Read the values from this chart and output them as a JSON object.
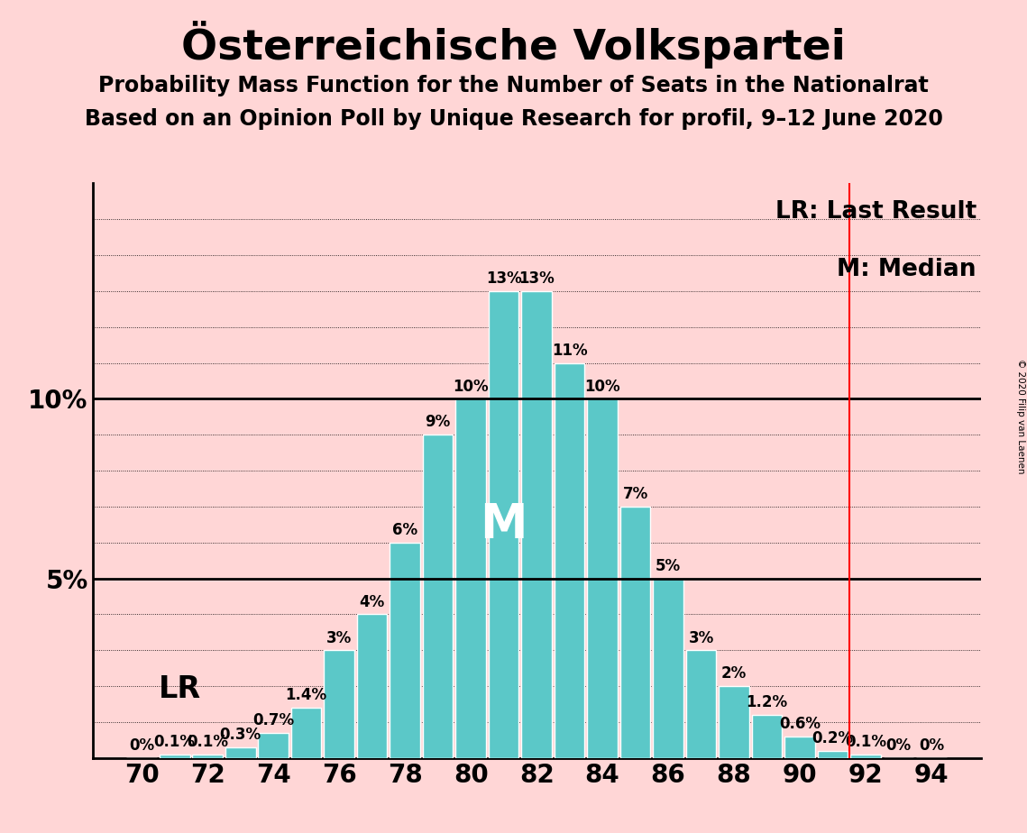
{
  "title": "Österreichische Volkspartei",
  "subtitle1": "Probability Mass Function for the Number of Seats in the Nationalrat",
  "subtitle2": "Based on an Opinion Poll by Unique Research for profil, 9–12 June 2020",
  "copyright": "© 2020 Filip van Laenen",
  "seats": [
    70,
    71,
    72,
    73,
    74,
    75,
    76,
    77,
    78,
    79,
    80,
    81,
    82,
    83,
    84,
    85,
    86,
    87,
    88,
    89,
    90,
    91,
    92,
    93,
    94
  ],
  "probabilities": [
    0.0,
    0.1,
    0.1,
    0.3,
    0.7,
    1.4,
    3.0,
    4.0,
    6.0,
    9.0,
    10.0,
    13.0,
    13.0,
    11.0,
    10.0,
    7.0,
    5.0,
    3.0,
    2.0,
    1.2,
    0.6,
    0.2,
    0.1,
    0.0,
    0.0
  ],
  "labels": [
    "0%",
    "0.1%",
    "0.1%",
    "0.3%",
    "0.7%",
    "1.4%",
    "3%",
    "4%",
    "6%",
    "9%",
    "10%",
    "13%",
    "13%",
    "11%",
    "10%",
    "7%",
    "5%",
    "3%",
    "2%",
    "1.2%",
    "0.6%",
    "0.2%",
    "0.1%",
    "0%",
    "0%"
  ],
  "bar_color": "#5BC8C8",
  "background_color": "#FFD6D6",
  "lr_line_x": 91.5,
  "median_seat": 81,
  "xlim": [
    68.5,
    95.5
  ],
  "ylim": [
    0,
    16
  ],
  "xtick_seats": [
    70,
    72,
    74,
    76,
    78,
    80,
    82,
    84,
    86,
    88,
    90,
    92,
    94
  ],
  "title_fontsize": 34,
  "subtitle_fontsize": 17,
  "label_fontsize": 12,
  "axis_fontsize": 20,
  "legend_fontsize": 19
}
